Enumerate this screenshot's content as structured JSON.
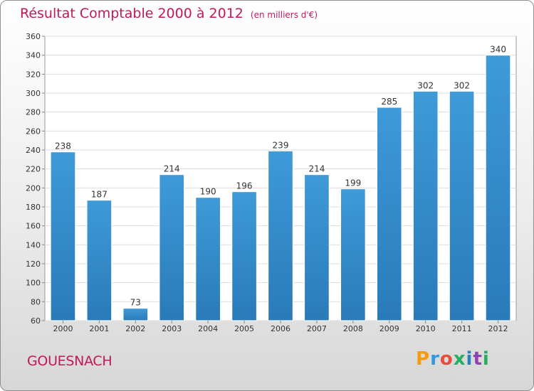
{
  "header": {
    "title": "Résultat Comptable 2000 à 2012",
    "subtitle": "(en milliers d'€)"
  },
  "footer": {
    "location": "GOUESNACH",
    "logo_letters": [
      "P",
      "r",
      "o",
      "x",
      "i",
      "t",
      "i"
    ],
    "logo_colors": [
      "#f39c12",
      "#3498db",
      "#e74c3c",
      "#27ae60",
      "#2980b9",
      "#8e44ad",
      "#27ae60"
    ]
  },
  "chart_data": {
    "type": "bar",
    "title": "Résultat Comptable 2000 à 2012",
    "subtitle": "(en milliers d'€)",
    "categories": [
      "2000",
      "2001",
      "2002",
      "2003",
      "2004",
      "2005",
      "2006",
      "2007",
      "2008",
      "2009",
      "2010",
      "2011",
      "2012"
    ],
    "values": [
      238,
      187,
      73,
      214,
      190,
      196,
      239,
      214,
      199,
      285,
      302,
      302,
      340
    ],
    "ylim": [
      60,
      360
    ],
    "yticks": [
      60,
      80,
      100,
      120,
      140,
      160,
      180,
      200,
      220,
      240,
      260,
      280,
      300,
      320,
      340,
      360
    ],
    "grid": true,
    "bar_color": "#3f9ad8",
    "bar_color_dark": "#2a7ab8"
  }
}
